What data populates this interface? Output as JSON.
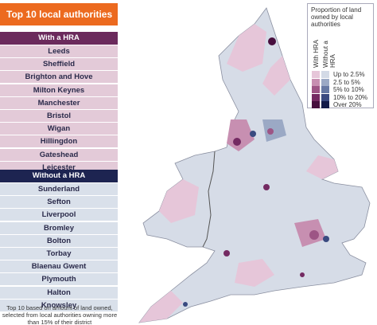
{
  "panel": {
    "title": "Top 10 local authorities",
    "groups": [
      {
        "heading": "With a HRA",
        "items": [
          "Leeds",
          "Sheffield",
          "Brighton and Hove",
          "Milton Keynes",
          "Manchester",
          "Bristol",
          "Wigan",
          "Hillingdon",
          "Gateshead",
          "Leicester"
        ]
      },
      {
        "heading": "Without a HRA",
        "items": [
          "Sunderland",
          "Sefton",
          "Liverpool",
          "Bromley",
          "Bolton",
          "Torbay",
          "Blaenau Gwent",
          "Plymouth",
          "Halton",
          "Knowsley"
        ]
      }
    ],
    "footnote": "Top 10 based on amount of land owned, selected from local authorities owning more than 15% of their district"
  },
  "legend": {
    "title": "Proportion of land owned by local authorities",
    "columns": [
      "With HRA",
      "Without a HRA"
    ],
    "classes": [
      {
        "label": "Up to 2.5%",
        "colors": [
          "#e6c6d9",
          "#d3dae6"
        ]
      },
      {
        "label": "2.5 to 5%",
        "colors": [
          "#c78fb1",
          "#9ba9c5"
        ]
      },
      {
        "label": "5% to 10%",
        "colors": [
          "#9d5585",
          "#6678a3"
        ]
      },
      {
        "label": "10% to 20%",
        "colors": [
          "#742a62",
          "#3a4a80"
        ]
      },
      {
        "label": "Over 20%",
        "colors": [
          "#470f3e",
          "#121a48"
        ]
      }
    ]
  }
}
